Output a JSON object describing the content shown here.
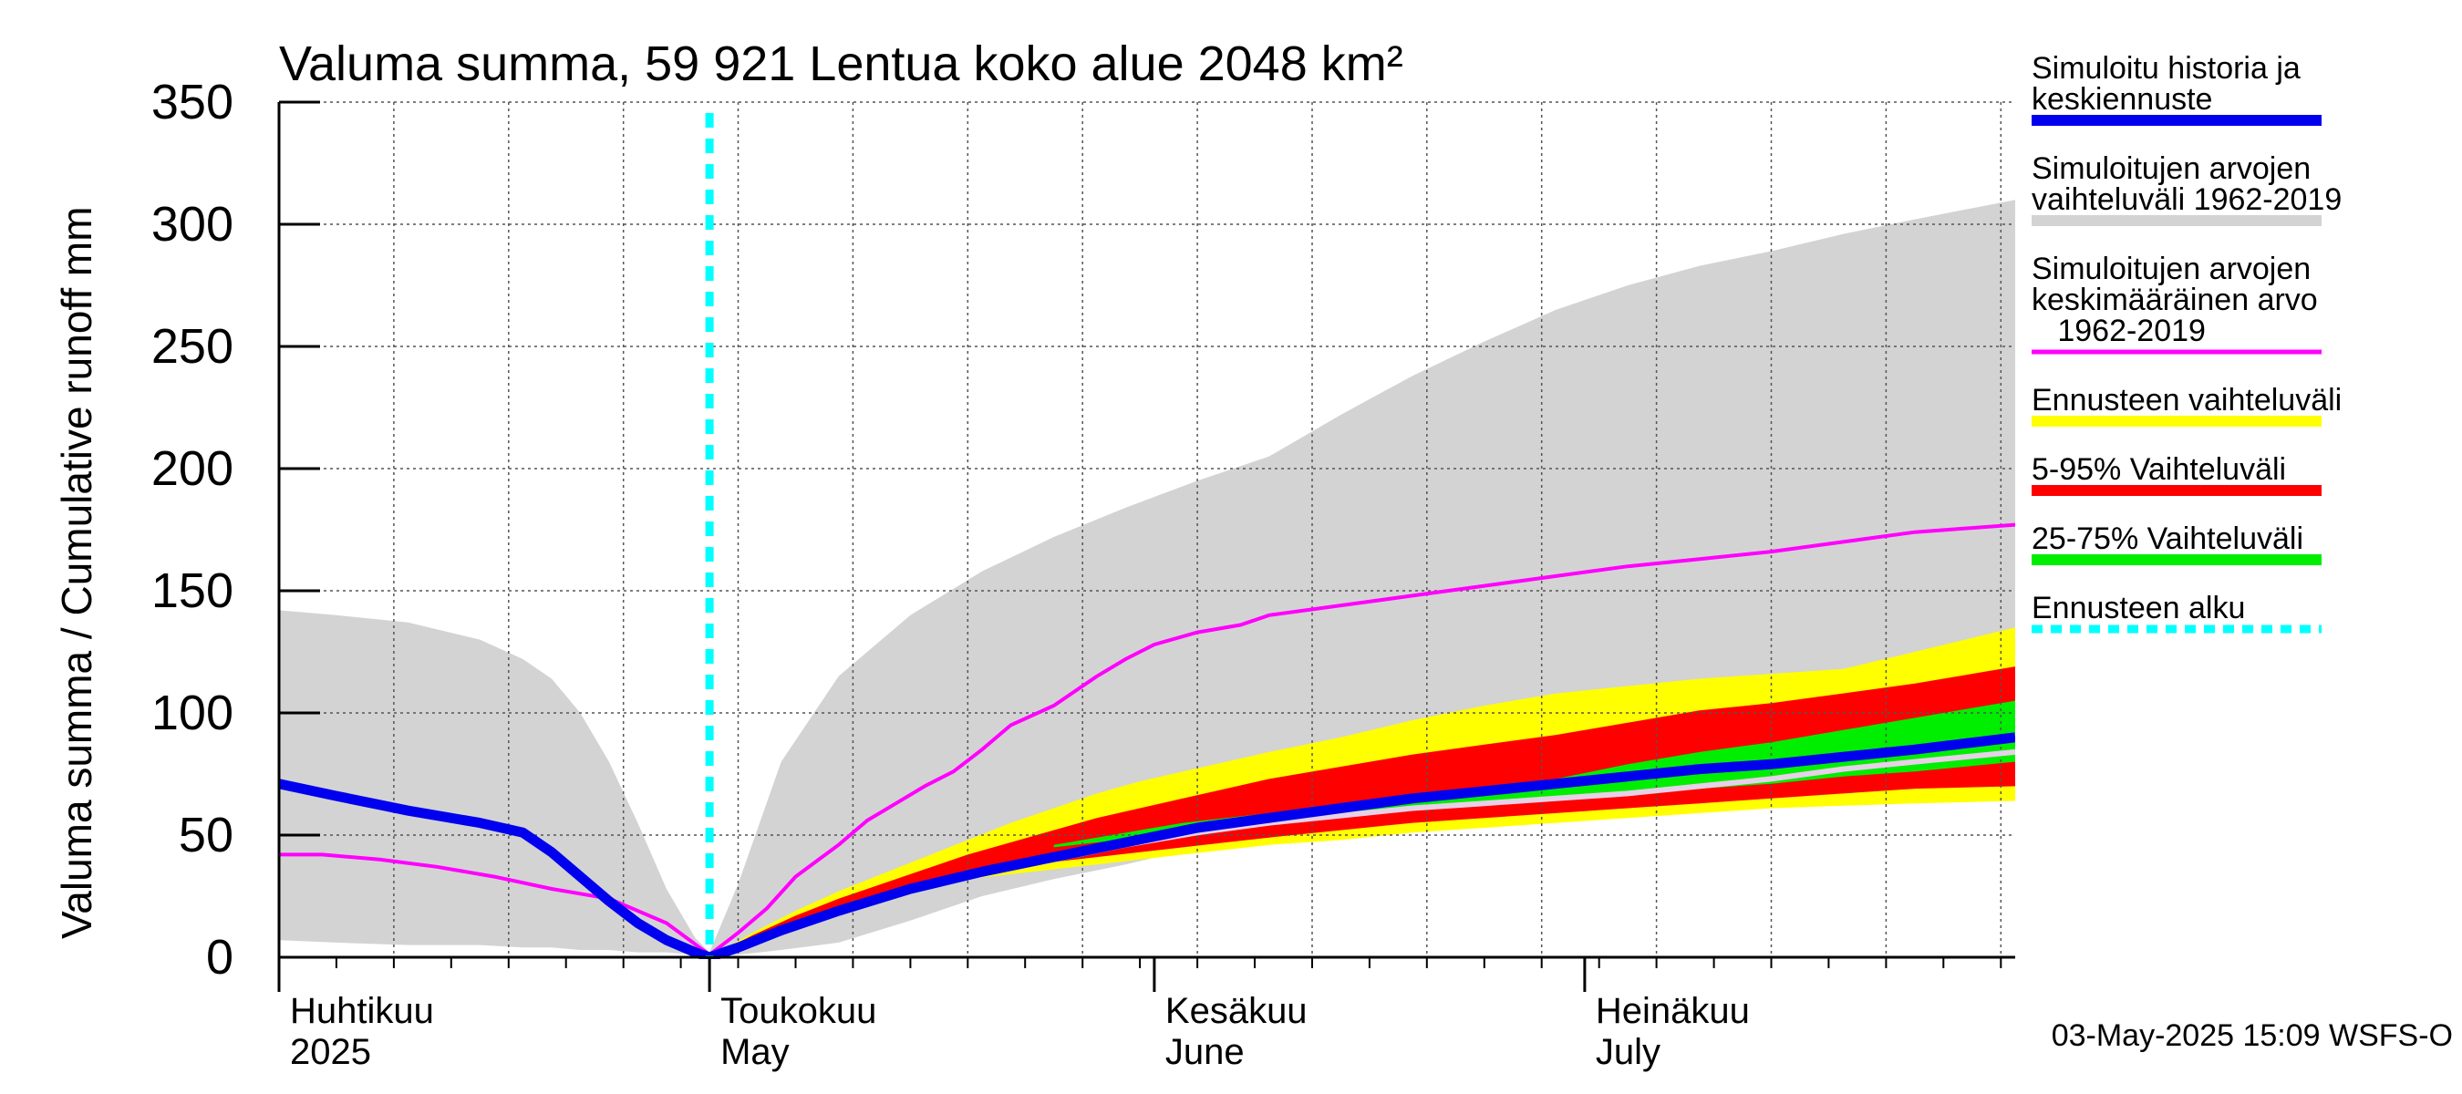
{
  "chart_data": {
    "type": "area",
    "title": "Valuma summa, 59 921 Lentua koko alue 2048 km²",
    "ylabel": "Valuma summa / Cumulative runoff    mm",
    "ylim": [
      0,
      350
    ],
    "yticks": [
      0,
      50,
      100,
      150,
      200,
      250,
      300,
      350
    ],
    "x_domain": {
      "start": "2025-04-01",
      "end": "2025-07-31",
      "unit": "day_of_year",
      "min": 91,
      "max": 212
    },
    "forecast_start_doy": 121,
    "month_labels": [
      {
        "line1": "Huhtikuu",
        "line2": "2025",
        "doy": 91
      },
      {
        "line1": "Toukokuu",
        "line2": "May",
        "doy": 121
      },
      {
        "line1": "Kesäkuu",
        "line2": "June",
        "doy": 152
      },
      {
        "line1": "Heinäkuu",
        "line2": "July",
        "doy": 182
      }
    ],
    "series": {
      "hist_range": {
        "name": "Simuloitujen arvojen vaihteluväli 1962-2019",
        "x": [
          91,
          95,
          100,
          105,
          108,
          110,
          112,
          114,
          116,
          118,
          120,
          121,
          123,
          126,
          130,
          135,
          140,
          145,
          150,
          155,
          160,
          165,
          170,
          175,
          180,
          185,
          190,
          195,
          200,
          205,
          212
        ],
        "upper": [
          142,
          140,
          137,
          130,
          122,
          114,
          100,
          80,
          55,
          28,
          8,
          2,
          30,
          80,
          115,
          140,
          158,
          172,
          184,
          195,
          205,
          222,
          238,
          252,
          265,
          275,
          283,
          289,
          296,
          302,
          310
        ],
        "lower": [
          7,
          6,
          5,
          5,
          4,
          4,
          3,
          3,
          2,
          2,
          1,
          0,
          1,
          3,
          6,
          15,
          25,
          32,
          38,
          45,
          51,
          56,
          61,
          65,
          70,
          73,
          76,
          79,
          82,
          85,
          90
        ]
      },
      "mean": {
        "name": "Simuloitujen arvojen keskimääräinen arvo 1962-2019",
        "x": [
          91,
          94,
          98,
          102,
          106,
          110,
          114,
          118,
          121,
          123,
          125,
          127,
          130,
          132,
          134,
          136,
          138,
          140,
          142,
          145,
          148,
          150,
          152,
          155,
          158,
          160,
          165,
          170,
          175,
          180,
          185,
          190,
          195,
          200,
          205,
          212
        ],
        "y": [
          42,
          42,
          40,
          37,
          33,
          28,
          24,
          14,
          1,
          10,
          20,
          33,
          46,
          56,
          63,
          70,
          76,
          85,
          95,
          103,
          115,
          122,
          128,
          133,
          136,
          140,
          144,
          148,
          152,
          156,
          160,
          163,
          166,
          170,
          174,
          177
        ]
      },
      "forecast_range": {
        "name": "Ennusteen vaihteluväli",
        "x": [
          121,
          124,
          127,
          130,
          133,
          136,
          139,
          142,
          145,
          148,
          151,
          154,
          157,
          160,
          165,
          170,
          175,
          180,
          185,
          190,
          195,
          200,
          205,
          212
        ],
        "upper": [
          0,
          10,
          19,
          27,
          34,
          41,
          48,
          55,
          61,
          67,
          72,
          76,
          80,
          84,
          90,
          97,
          103,
          108,
          111,
          114,
          116,
          118,
          125,
          135
        ],
        "lower": [
          0,
          7,
          14,
          20,
          25,
          29,
          32,
          34,
          36,
          38,
          40,
          42,
          44,
          46,
          48,
          51,
          53,
          55,
          57,
          59,
          61,
          62,
          63,
          64
        ]
      },
      "p5_95": {
        "name": "5-95% Vaihteluväli",
        "x": [
          121,
          124,
          127,
          130,
          133,
          136,
          139,
          142,
          145,
          148,
          151,
          154,
          157,
          160,
          165,
          170,
          175,
          180,
          185,
          190,
          195,
          200,
          205,
          212
        ],
        "upper": [
          0,
          9,
          17,
          24,
          30,
          36,
          42,
          47,
          52,
          57,
          61,
          65,
          69,
          73,
          78,
          83,
          87,
          91,
          96,
          101,
          104,
          108,
          112,
          119
        ],
        "lower": [
          0,
          7,
          14,
          20,
          25,
          29,
          33,
          36,
          39,
          41,
          43,
          45,
          47,
          49,
          52,
          55,
          57,
          59,
          61,
          63,
          65,
          67,
          69,
          70
        ]
      },
      "p25_75": {
        "name": "25-75% Vaihteluväli",
        "x": [
          145,
          148,
          151,
          154,
          157,
          160,
          165,
          170,
          175,
          180,
          185,
          190,
          195,
          200,
          205,
          212
        ],
        "upper": [
          46,
          49,
          52,
          55,
          57,
          59,
          63,
          66,
          70,
          73,
          79,
          84,
          88,
          93,
          98,
          105
        ],
        "lower": [
          45,
          47,
          49,
          51,
          53,
          55,
          58,
          61,
          63,
          65,
          67,
          69,
          71,
          74,
          76,
          80
        ]
      },
      "median_light": {
        "name": "",
        "x": [
          121,
          125,
          130,
          135,
          140,
          145,
          150,
          155,
          160,
          165,
          170,
          175,
          180,
          185,
          190,
          195,
          200,
          205,
          212
        ],
        "y": [
          0,
          9,
          19,
          27,
          34,
          40,
          46,
          51,
          55,
          58,
          61,
          63,
          65,
          67,
          70,
          73,
          77,
          80,
          84
        ]
      },
      "history": {
        "name": "Simuloitu historia ja keskiennuste",
        "x": [
          91,
          95,
          100,
          105,
          108,
          110,
          112,
          114,
          116,
          118,
          120,
          121,
          123,
          126,
          130,
          135,
          140,
          145,
          150,
          155,
          160,
          165,
          170,
          175,
          180,
          185,
          190,
          195,
          200,
          205,
          212
        ],
        "y": [
          71,
          66,
          60,
          55,
          51,
          43,
          33,
          23,
          14,
          7,
          2,
          0,
          4,
          11,
          19,
          28,
          35,
          41,
          47,
          53,
          57,
          61,
          65,
          68,
          71,
          74,
          77,
          79,
          82,
          85,
          90
        ]
      }
    },
    "legend_position": "right",
    "legend": [
      {
        "key": "history",
        "label": [
          "Simuloitu historia ja",
          "keskiennuste"
        ],
        "color": "#0000ee",
        "style": "thick"
      },
      {
        "key": "hist_range",
        "label": [
          "Simuloitujen arvojen",
          "vaihteluväli 1962-2019"
        ],
        "color": "#d3d3d3",
        "style": "thick"
      },
      {
        "key": "mean",
        "label": [
          "Simuloitujen arvojen",
          "keskimääräinen arvo",
          "   1962-2019"
        ],
        "color": "#ff00ff",
        "style": "thin"
      },
      {
        "key": "forecast_range",
        "label": [
          "Ennusteen vaihteluväli"
        ],
        "color": "#ffff00",
        "style": "thick"
      },
      {
        "key": "p5_95",
        "label": [
          "5-95% Vaihteluväli"
        ],
        "color": "#ff0000",
        "style": "thick"
      },
      {
        "key": "p25_75",
        "label": [
          "25-75% Vaihteluväli"
        ],
        "color": "#00ee00",
        "style": "thick"
      },
      {
        "key": "forecast_start",
        "label": [
          "Ennusteen alku"
        ],
        "color": "#00ffff",
        "style": "dotted"
      }
    ],
    "footer": "03-May-2025 15:09 WSFS-O"
  }
}
